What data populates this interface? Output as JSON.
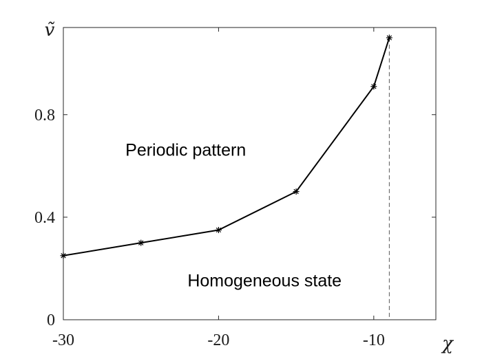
{
  "chart_data": {
    "type": "line",
    "x": [
      -30,
      -25,
      -20,
      -15,
      -10,
      -9
    ],
    "series": [
      {
        "values": [
          0.25,
          0.3,
          0.35,
          0.5,
          0.91,
          1.1
        ]
      }
    ],
    "xlabel": "χ",
    "ylabel": "ṽ",
    "xlim": [
      -30,
      -6
    ],
    "ylim": [
      0,
      1.14
    ],
    "xticks": [
      -30,
      -20,
      -10
    ],
    "xtick_labels": [
      "-30",
      "-20",
      "-10"
    ],
    "yticks": [
      0,
      0.4,
      0.8
    ],
    "ytick_labels": [
      "0",
      "0.4",
      "0.8"
    ],
    "vertical_line": {
      "x": -9,
      "style": "dashed"
    },
    "marker": "asterisk",
    "grid": false,
    "annotations": [
      {
        "text": "Periodic pattern",
        "x": -26,
        "y": 0.64
      },
      {
        "text": "Homogeneous state",
        "x": -22,
        "y": 0.13
      }
    ],
    "colors": {
      "line": "#000000",
      "axis": "#262626",
      "dashed": "#555555"
    }
  }
}
